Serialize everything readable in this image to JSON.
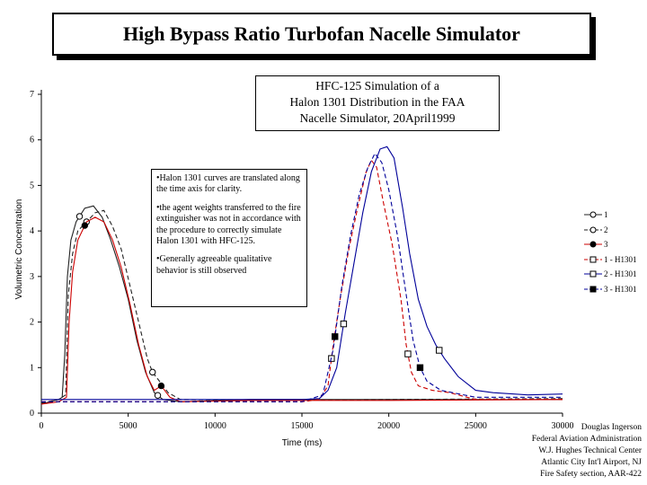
{
  "title": "High Bypass Ratio Turbofan Nacelle Simulator",
  "subtitle_lines": [
    "HFC-125 Simulation of a",
    "Halon 1301 Distribution in the FAA",
    "Nacelle Simulator, 20April1999"
  ],
  "notes": [
    "•Halon 1301 curves are translated along the time axis for clarity.",
    "•the agent weights transferred to the fire extinguisher was not in accordance with the procedure to correctly simulate Halon 1301 with HFC-125.",
    "•Generally agreeable qualitative behavior is still observed"
  ],
  "credit_lines": [
    "Douglas Ingerson",
    "Federal Aviation Administration",
    "W.J. Hughes Technical Center",
    "Atlantic City Int'l Airport, NJ",
    "Fire Safety section, AAR-422"
  ],
  "chart_data": {
    "type": "line",
    "xlabel": "Time (ms)",
    "ylabel": "Volumetric Concentration",
    "xlim": [
      0,
      30000
    ],
    "ylim": [
      0,
      7
    ],
    "x_ticks": [
      "0",
      "5000",
      "10000",
      "15000",
      "20000",
      "25000",
      "30000"
    ],
    "y_ticks": [
      "0",
      "1",
      "2",
      "3",
      "4",
      "5",
      "6",
      "7"
    ],
    "grid": false,
    "legend_position": "right",
    "series": [
      {
        "name": "1",
        "color": "#222222",
        "dash": "solid",
        "marker": "open-circle",
        "marker_x": [
          2200,
          6700
        ],
        "points": [
          [
            0,
            0.2
          ],
          [
            500,
            0.25
          ],
          [
            1000,
            0.3
          ],
          [
            1200,
            0.35
          ],
          [
            1350,
            1.3
          ],
          [
            1500,
            3.0
          ],
          [
            1700,
            3.8
          ],
          [
            2000,
            4.2
          ],
          [
            2500,
            4.5
          ],
          [
            3000,
            4.55
          ],
          [
            3500,
            4.3
          ],
          [
            4000,
            3.8
          ],
          [
            4500,
            3.2
          ],
          [
            5000,
            2.5
          ],
          [
            5500,
            1.6
          ],
          [
            6000,
            0.9
          ],
          [
            6500,
            0.45
          ],
          [
            7000,
            0.3
          ],
          [
            8000,
            0.25
          ],
          [
            12000,
            0.3
          ],
          [
            20000,
            0.3
          ],
          [
            30000,
            0.3
          ]
        ]
      },
      {
        "name": "2",
        "color": "#222222",
        "dash": "dash",
        "marker": "open-circle",
        "marker_x": [
          2600,
          6400
        ],
        "points": [
          [
            0,
            0.22
          ],
          [
            1000,
            0.3
          ],
          [
            1400,
            0.4
          ],
          [
            1550,
            2.6
          ],
          [
            1800,
            3.5
          ],
          [
            2100,
            4.0
          ],
          [
            2600,
            4.2
          ],
          [
            3100,
            4.4
          ],
          [
            3600,
            4.45
          ],
          [
            4100,
            4.1
          ],
          [
            4600,
            3.6
          ],
          [
            5100,
            2.8
          ],
          [
            5600,
            2.0
          ],
          [
            6100,
            1.2
          ],
          [
            6400,
            0.9
          ],
          [
            6800,
            0.7
          ],
          [
            7300,
            0.45
          ],
          [
            8000,
            0.3
          ],
          [
            12000,
            0.28
          ],
          [
            20000,
            0.3
          ],
          [
            30000,
            0.32
          ]
        ]
      },
      {
        "name": "3",
        "color": "#cc0000",
        "dash": "solid",
        "marker": "filled-circle",
        "marker_x": [
          2500,
          6900
        ],
        "points": [
          [
            0,
            0.2
          ],
          [
            1000,
            0.25
          ],
          [
            1450,
            0.35
          ],
          [
            1600,
            2.0
          ],
          [
            1800,
            3.1
          ],
          [
            2100,
            3.8
          ],
          [
            2600,
            4.2
          ],
          [
            3100,
            4.3
          ],
          [
            3600,
            4.2
          ],
          [
            4100,
            3.8
          ],
          [
            4600,
            3.2
          ],
          [
            5100,
            2.4
          ],
          [
            5600,
            1.5
          ],
          [
            6100,
            0.8
          ],
          [
            6500,
            0.5
          ],
          [
            6900,
            0.6
          ],
          [
            7400,
            0.35
          ],
          [
            8000,
            0.25
          ],
          [
            12000,
            0.28
          ],
          [
            20000,
            0.28
          ],
          [
            30000,
            0.3
          ]
        ]
      },
      {
        "name": "1 - H1301",
        "color": "#cc0000",
        "dash": "dash",
        "marker": "open-square",
        "marker_x": [
          16700,
          21100
        ],
        "points": [
          [
            0,
            0.25
          ],
          [
            15000,
            0.25
          ],
          [
            16000,
            0.3
          ],
          [
            16500,
            0.6
          ],
          [
            16800,
            1.5
          ],
          [
            17200,
            2.5
          ],
          [
            17700,
            3.6
          ],
          [
            18200,
            4.5
          ],
          [
            18700,
            5.3
          ],
          [
            19000,
            5.55
          ],
          [
            19300,
            5.4
          ],
          [
            19700,
            4.6
          ],
          [
            20200,
            3.7
          ],
          [
            20700,
            2.5
          ],
          [
            21000,
            1.5
          ],
          [
            21300,
            0.9
          ],
          [
            21700,
            0.6
          ],
          [
            22500,
            0.5
          ],
          [
            23500,
            0.45
          ],
          [
            25000,
            0.3
          ],
          [
            30000,
            0.3
          ]
        ]
      },
      {
        "name": "2 - H1301",
        "color": "#000099",
        "dash": "solid",
        "marker": "open-square",
        "marker_x": [
          17400,
          22900
        ],
        "points": [
          [
            0,
            0.3
          ],
          [
            15000,
            0.3
          ],
          [
            16000,
            0.32
          ],
          [
            16500,
            0.5
          ],
          [
            17000,
            1.0
          ],
          [
            17500,
            2.2
          ],
          [
            18000,
            3.3
          ],
          [
            18500,
            4.4
          ],
          [
            19000,
            5.3
          ],
          [
            19500,
            5.8
          ],
          [
            19900,
            5.85
          ],
          [
            20300,
            5.6
          ],
          [
            20800,
            4.5
          ],
          [
            21200,
            3.5
          ],
          [
            21700,
            2.5
          ],
          [
            22200,
            1.9
          ],
          [
            22700,
            1.5
          ],
          [
            23200,
            1.2
          ],
          [
            24000,
            0.8
          ],
          [
            25000,
            0.5
          ],
          [
            26000,
            0.45
          ],
          [
            28000,
            0.4
          ],
          [
            30000,
            0.42
          ]
        ]
      },
      {
        "name": "3 - H1301",
        "color": "#000099",
        "dash": "dash",
        "marker": "filled-square",
        "marker_x": [
          16900,
          21800
        ],
        "points": [
          [
            0,
            0.25
          ],
          [
            15000,
            0.25
          ],
          [
            16200,
            0.4
          ],
          [
            16800,
            1.4
          ],
          [
            17300,
            2.8
          ],
          [
            17800,
            3.9
          ],
          [
            18300,
            4.8
          ],
          [
            18800,
            5.4
          ],
          [
            19200,
            5.7
          ],
          [
            19600,
            5.5
          ],
          [
            20000,
            4.9
          ],
          [
            20500,
            3.9
          ],
          [
            21000,
            2.6
          ],
          [
            21400,
            1.6
          ],
          [
            21800,
            1.0
          ],
          [
            22200,
            0.7
          ],
          [
            23000,
            0.5
          ],
          [
            25000,
            0.35
          ],
          [
            30000,
            0.35
          ]
        ]
      }
    ]
  }
}
